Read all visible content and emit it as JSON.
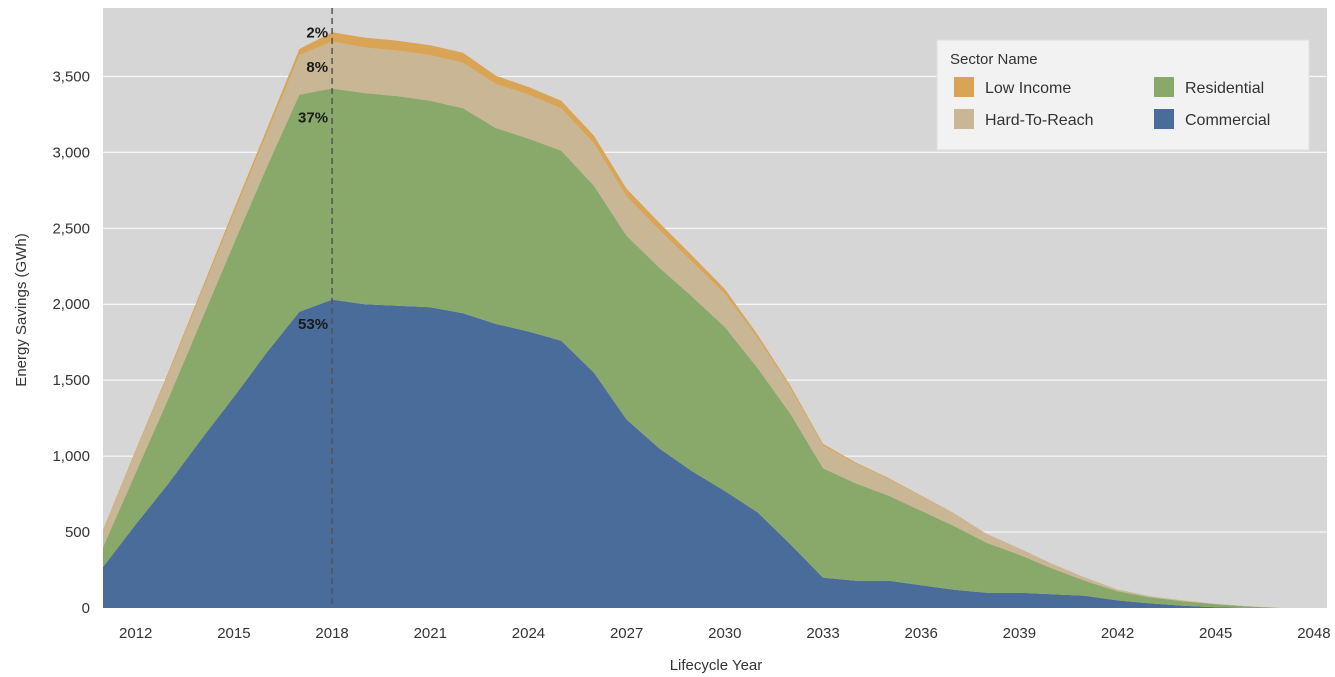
{
  "chart_data": {
    "type": "area",
    "stacked": true,
    "xlabel": "Lifecycle Year",
    "ylabel": "Energy Savings (GWh)",
    "ylim": [
      0,
      3950
    ],
    "xlim": [
      2011,
      2048.4
    ],
    "grid": true,
    "x_ticks": [
      2012,
      2015,
      2018,
      2021,
      2024,
      2027,
      2030,
      2033,
      2036,
      2039,
      2042,
      2045,
      2048
    ],
    "y_ticks": [
      0,
      500,
      1000,
      1500,
      2000,
      2500,
      3000,
      3500
    ],
    "y_tick_labels": [
      "0",
      "500",
      "1,000",
      "1,500",
      "2,000",
      "2,500",
      "3,000",
      "3,500"
    ],
    "x": [
      2011,
      2012,
      2013,
      2014,
      2015,
      2016,
      2017,
      2018,
      2019,
      2020,
      2021,
      2022,
      2023,
      2024,
      2025,
      2026,
      2027,
      2028,
      2029,
      2030,
      2031,
      2032,
      2033,
      2034,
      2035,
      2036,
      2037,
      2038,
      2039,
      2040,
      2041,
      2042,
      2043,
      2044,
      2045,
      2046,
      2047
    ],
    "series": [
      {
        "name": "Commercial",
        "color": "#4a6c9b",
        "values": [
          270,
          550,
          820,
          1110,
          1390,
          1680,
          1950,
          2030,
          2000,
          1990,
          1980,
          1940,
          1870,
          1820,
          1760,
          1550,
          1240,
          1050,
          900,
          770,
          630,
          420,
          200,
          180,
          180,
          150,
          120,
          100,
          100,
          90,
          80,
          50,
          30,
          15,
          5,
          0,
          0
        ]
      },
      {
        "name": "Residential",
        "color": "#89a96b",
        "values": [
          130,
          340,
          560,
          780,
          1010,
          1220,
          1430,
          1390,
          1390,
          1380,
          1360,
          1350,
          1290,
          1270,
          1250,
          1230,
          1210,
          1190,
          1150,
          1080,
          950,
          860,
          720,
          640,
          560,
          490,
          420,
          330,
          250,
          170,
          100,
          60,
          40,
          30,
          20,
          10,
          0
        ]
      },
      {
        "name": "Hard-To-Reach",
        "color": "#c9b694",
        "values": [
          110,
          140,
          160,
          180,
          200,
          220,
          260,
          310,
          300,
          300,
          300,
          300,
          290,
          290,
          280,
          280,
          260,
          250,
          230,
          220,
          200,
          170,
          150,
          130,
          110,
          95,
          80,
          55,
          40,
          30,
          20,
          12,
          8,
          5,
          3,
          2,
          0
        ]
      },
      {
        "name": "Low Income",
        "color": "#d9a456",
        "values": [
          5,
          10,
          15,
          20,
          25,
          30,
          40,
          60,
          65,
          65,
          65,
          65,
          55,
          50,
          50,
          50,
          50,
          45,
          40,
          30,
          20,
          15,
          10,
          8,
          6,
          5,
          4,
          3,
          2,
          1,
          1,
          0,
          0,
          0,
          0,
          0,
          0
        ]
      }
    ],
    "reference_line": {
      "x": 2018,
      "style": "dashed",
      "color": "#555555"
    },
    "annotations": [
      {
        "text": "2%",
        "x": 2018,
        "y": 3790
      },
      {
        "text": "8%",
        "x": 2018,
        "y": 3560
      },
      {
        "text": "37%",
        "x": 2018,
        "y": 3230
      },
      {
        "text": "53%",
        "x": 2018,
        "y": 1870
      }
    ],
    "legend": {
      "title": "Sector Name",
      "placement": "top-right",
      "items": [
        {
          "label": "Low Income",
          "color": "#d9a456"
        },
        {
          "label": "Residential",
          "color": "#89a96b"
        },
        {
          "label": "Hard-To-Reach",
          "color": "#c9b694"
        },
        {
          "label": "Commercial",
          "color": "#4a6c9b"
        }
      ]
    },
    "colors": {
      "plot_background": "#d6d6d6",
      "grid": "#ffffff"
    }
  }
}
